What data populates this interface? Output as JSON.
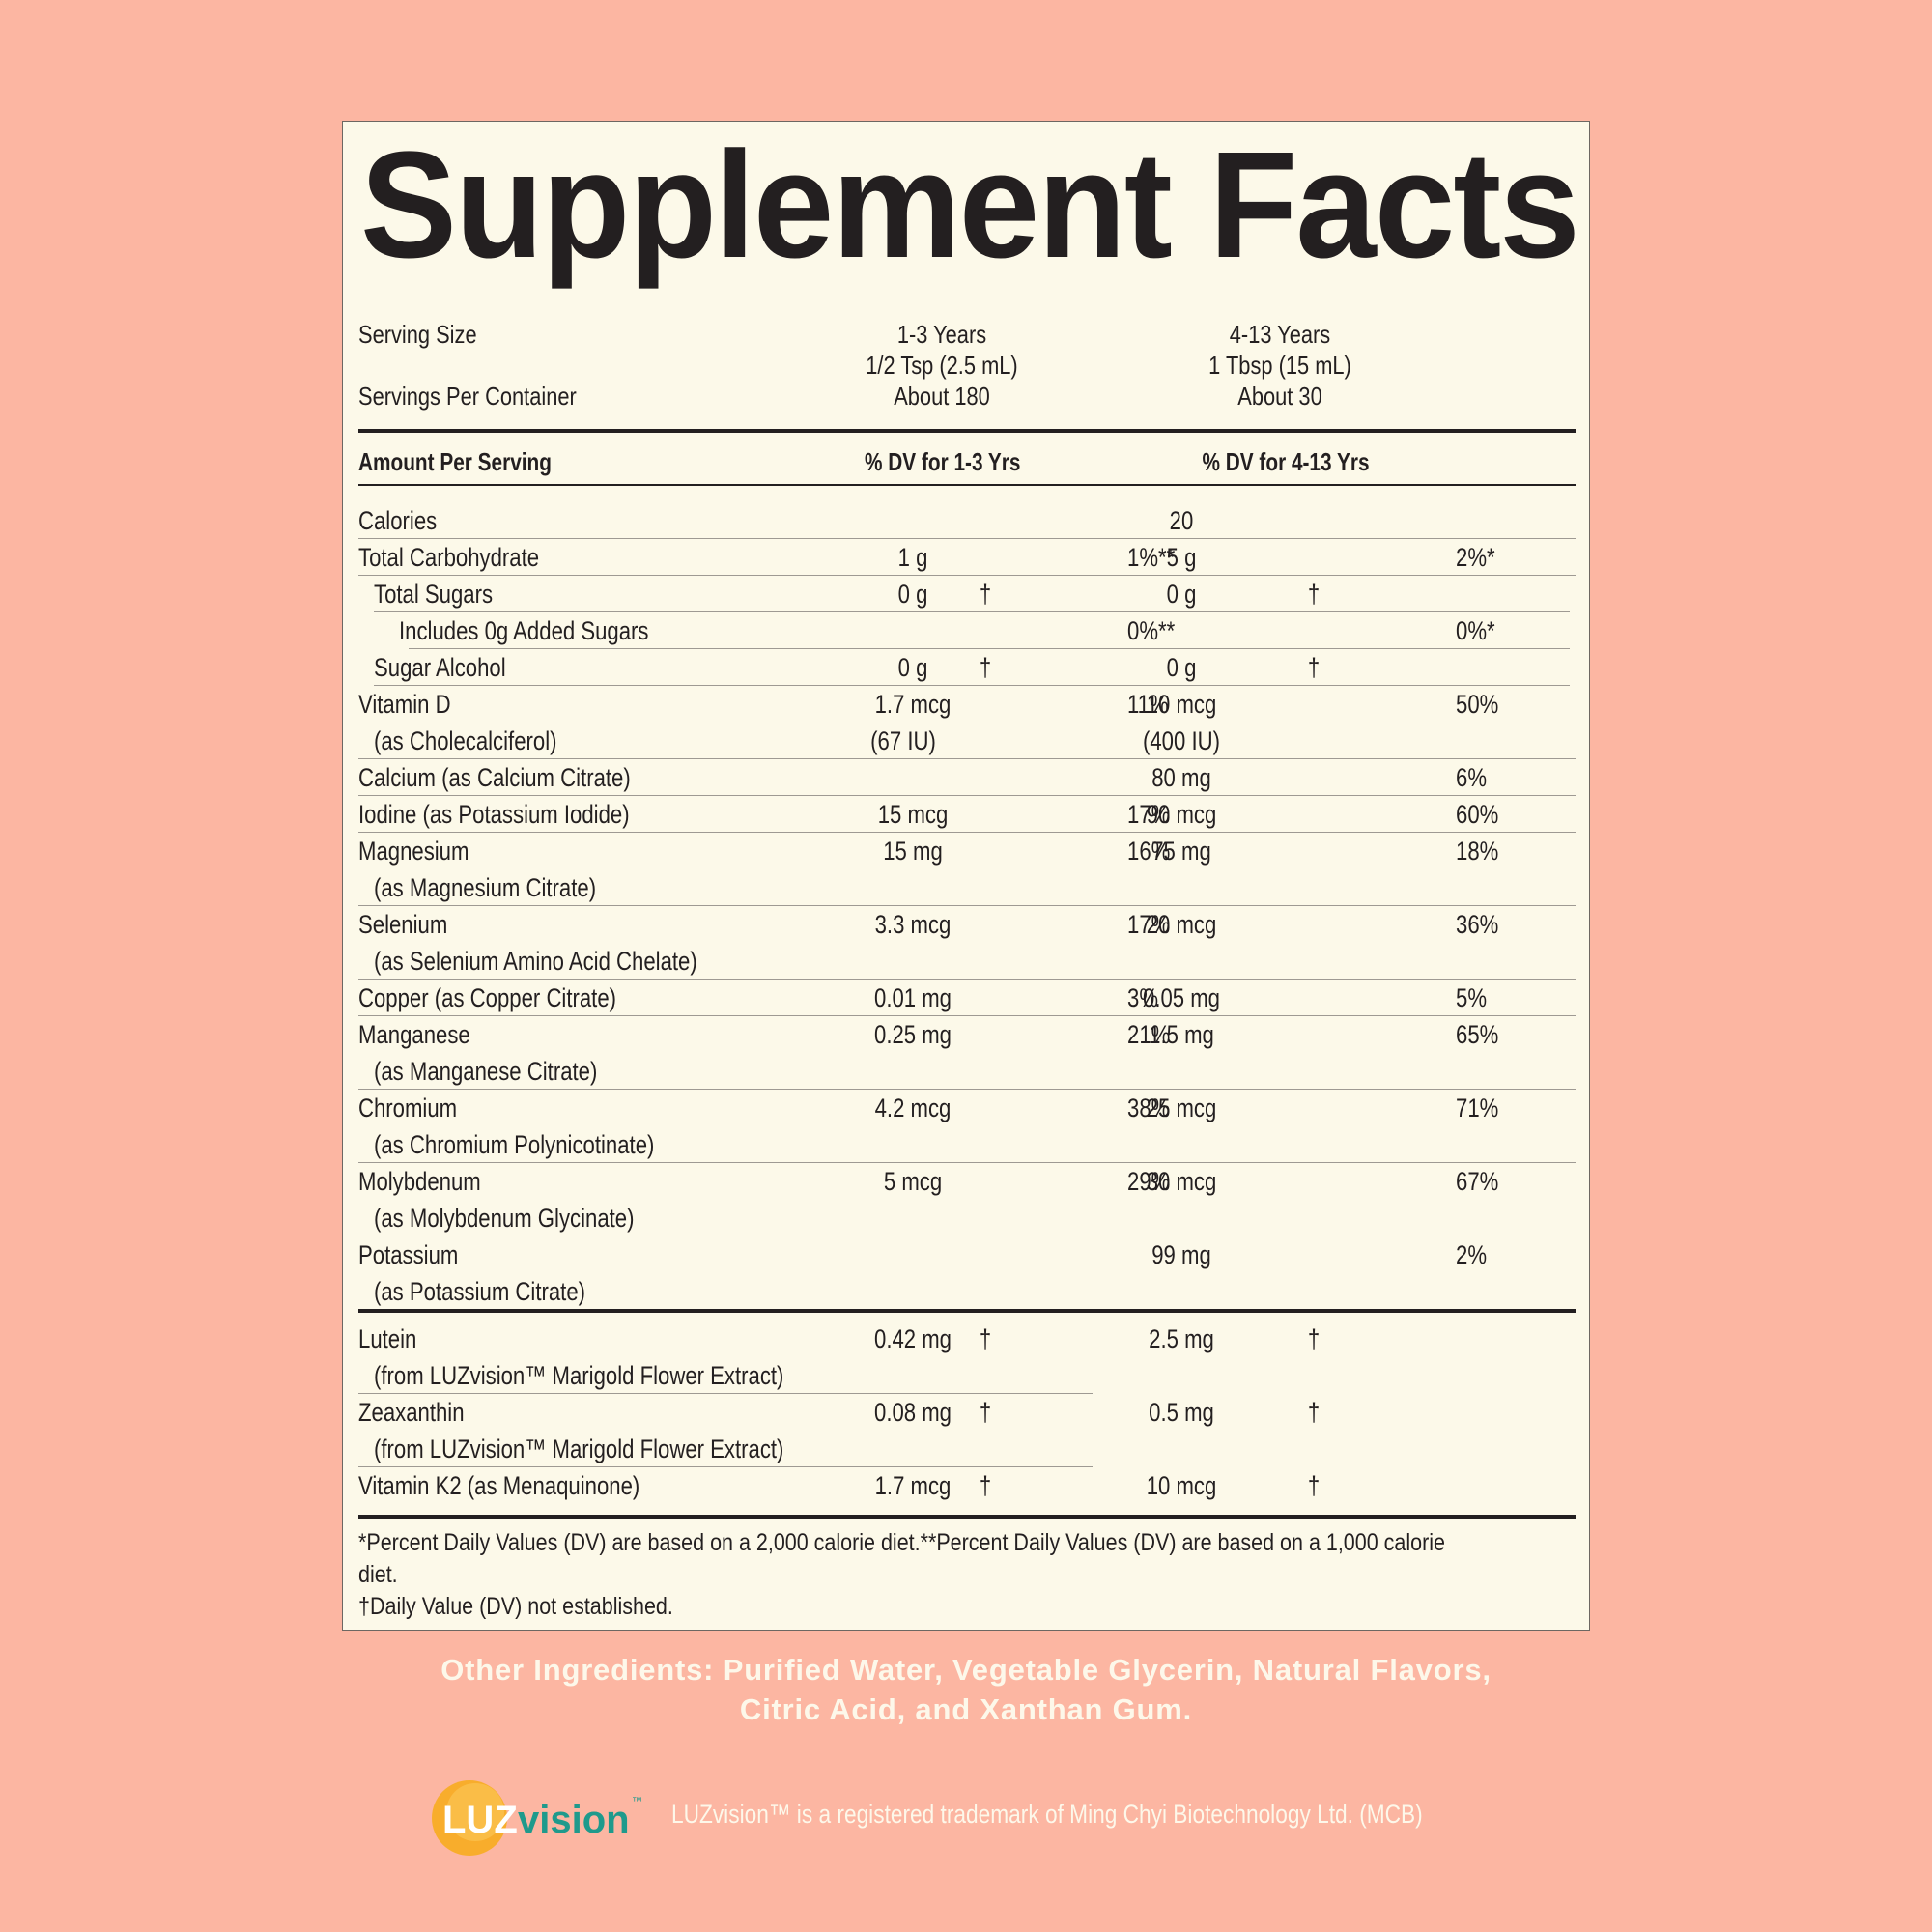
{
  "title": "Supplement Facts",
  "serving": {
    "serving_size_label": "Serving Size",
    "servings_per_container_label": "Servings Per Container",
    "col1": {
      "age": "1-3 Years",
      "size": "1/2 Tsp (2.5 mL)",
      "servings": "About 180"
    },
    "col2": {
      "age": "4-13 Years",
      "size": "1 Tbsp (15 mL)",
      "servings": "About 30"
    }
  },
  "header": {
    "amount_per_serving": "Amount Per Serving",
    "dv_col1": "% DV for 1-3 Yrs",
    "dv_col2": "% DV for 4-13 Yrs"
  },
  "nutrients": [
    {
      "name": "Calories",
      "amt1": "",
      "dv1": "",
      "amt2": "20",
      "dv2": ""
    },
    {
      "name": "Total Carbohydrate",
      "amt1": "1 g",
      "dv1": "1%**",
      "amt2": "5 g",
      "dv2": "2%*"
    },
    {
      "name": "Total Sugars",
      "amt1": "0 g",
      "dv1": "†",
      "amt2": "0 g",
      "dv2": "†"
    },
    {
      "name": "Includes 0g Added Sugars",
      "amt1": "",
      "dv1": "0%**",
      "amt2": "",
      "dv2": "0%*"
    },
    {
      "name": "Sugar Alcohol",
      "amt1": "0 g",
      "dv1": "†",
      "amt2": "0 g",
      "dv2": "†"
    },
    {
      "name": "Vitamin D",
      "sub": "(as Cholecalciferol)",
      "amt1": "1.7 mcg",
      "amt1b": "(67 IU)",
      "dv1": "11%",
      "amt2": "10 mcg",
      "amt2b": "(400 IU)",
      "dv2": "50%"
    },
    {
      "name": "Calcium (as Calcium Citrate)",
      "amt1": "",
      "dv1": "",
      "amt2": "80 mg",
      "dv2": "6%"
    },
    {
      "name": "Iodine (as Potassium Iodide)",
      "amt1": "15 mcg",
      "dv1": "17%",
      "amt2": "90 mcg",
      "dv2": "60%"
    },
    {
      "name": "Magnesium",
      "sub": "(as Magnesium Citrate)",
      "amt1": "15 mg",
      "dv1": "16%",
      "amt2": "75 mg",
      "dv2": "18%"
    },
    {
      "name": "Selenium",
      "sub": "(as Selenium Amino Acid Chelate)",
      "amt1": "3.3 mcg",
      "dv1": "17%",
      "amt2": "20 mcg",
      "dv2": "36%"
    },
    {
      "name": "Copper (as Copper Citrate)",
      "amt1": "0.01 mg",
      "dv1": "3%",
      "amt2": "0.05 mg",
      "dv2": "5%"
    },
    {
      "name": "Manganese",
      "sub": "(as Manganese Citrate)",
      "amt1": "0.25 mg",
      "dv1": "21%",
      "amt2": "1.5 mg",
      "dv2": "65%"
    },
    {
      "name": "Chromium",
      "sub": "(as Chromium Polynicotinate)",
      "amt1": "4.2 mcg",
      "dv1": "38%",
      "amt2": "25 mcg",
      "dv2": "71%"
    },
    {
      "name": "Molybdenum",
      "sub": "(as Molybdenum Glycinate)",
      "amt1": "5 mcg",
      "dv1": "29%",
      "amt2": "30 mcg",
      "dv2": "67%"
    },
    {
      "name": "Potassium",
      "sub": "(as Potassium Citrate)",
      "amt1": "",
      "dv1": "",
      "amt2": "99 mg",
      "dv2": "2%"
    }
  ],
  "other_nutrients": [
    {
      "name": "Lutein",
      "sub": "(from LUZvision™ Marigold Flower Extract)",
      "amt1": "0.42 mg",
      "dv1": "†",
      "amt2": "2.5 mg",
      "dv2": "†"
    },
    {
      "name": "Zeaxanthin",
      "sub": "(from LUZvision™ Marigold Flower Extract)",
      "amt1": "0.08 mg",
      "dv1": "†",
      "amt2": "0.5 mg",
      "dv2": "†"
    },
    {
      "name": "Vitamin K2 (as Menaquinone)",
      "amt1": "1.7 mcg",
      "dv1": "†",
      "amt2": "10 mcg",
      "dv2": "†"
    }
  ],
  "footnotes": {
    "line1": "*Percent Daily Values (DV) are based on a 2,000 calorie diet.**Percent Daily Values (DV) are based on a 1,000 calorie",
    "line2": "diet.",
    "line3": "†Daily Value (DV) not established."
  },
  "other_ingredients": {
    "line1": "Other Ingredients: Purified Water, Vegetable Glycerin, Natural Flavors,",
    "line2": "Citric Acid, and Xanthan Gum."
  },
  "brand": {
    "logo_part1": "LUZ",
    "logo_part2": "vision",
    "logo_tm": "™",
    "trademark_note": "LUZvision™ is a registered trademark of Ming Chyi Biotechnology Ltd. (MCB)",
    "colors": {
      "orange": "#f7a823",
      "teal": "#1f9a8c",
      "background": "#fcb6a2",
      "panel": "#fcf9e9"
    }
  }
}
